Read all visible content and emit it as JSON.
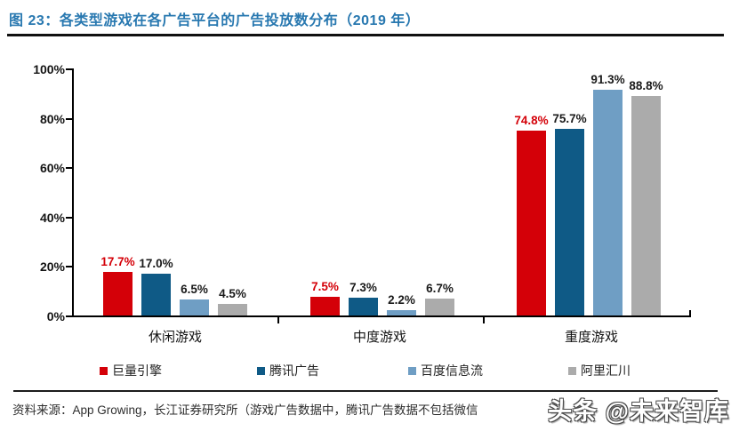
{
  "page": {
    "title": "图 23：各类型游戏在各广告平台的广告投放数分布（2019 年）",
    "source": "资料来源：App Growing，长江证券研究所（游戏广告数据中，腾讯广告数据不包括微信",
    "watermark": "头条 @未来智库"
  },
  "colors": {
    "title_blue": "#2878b0",
    "axis_black": "#000000",
    "label_black": "#1a1a1a"
  },
  "chart_data": {
    "type": "bar",
    "title": "各类型游戏在各广告平台的广告投放数分布（2019 年）",
    "categories": [
      "休闲游戏",
      "中度游戏",
      "重度游戏"
    ],
    "series": [
      {
        "name": "巨量引擎",
        "color": "#d40008",
        "label_color": "#d40008",
        "values": [
          17.7,
          7.5,
          74.8
        ]
      },
      {
        "name": "腾讯广告",
        "color": "#0f5a86",
        "label_color": "#1a1a1a",
        "values": [
          17.0,
          7.3,
          75.7
        ]
      },
      {
        "name": "百度信息流",
        "color": "#6f9ec4",
        "label_color": "#1a1a1a",
        "values": [
          6.5,
          2.2,
          91.3
        ]
      },
      {
        "name": "阿里汇川",
        "color": "#ababab",
        "label_color": "#1a1a1a",
        "values": [
          4.5,
          6.7,
          88.8
        ]
      }
    ],
    "y_ticks": [
      "0%",
      "20%",
      "40%",
      "60%",
      "80%",
      "100%"
    ],
    "ylim": [
      0,
      100
    ],
    "xlabel": "",
    "ylabel": "",
    "grid": false,
    "legend_position": "bottom",
    "value_label_format": "{v}%"
  }
}
